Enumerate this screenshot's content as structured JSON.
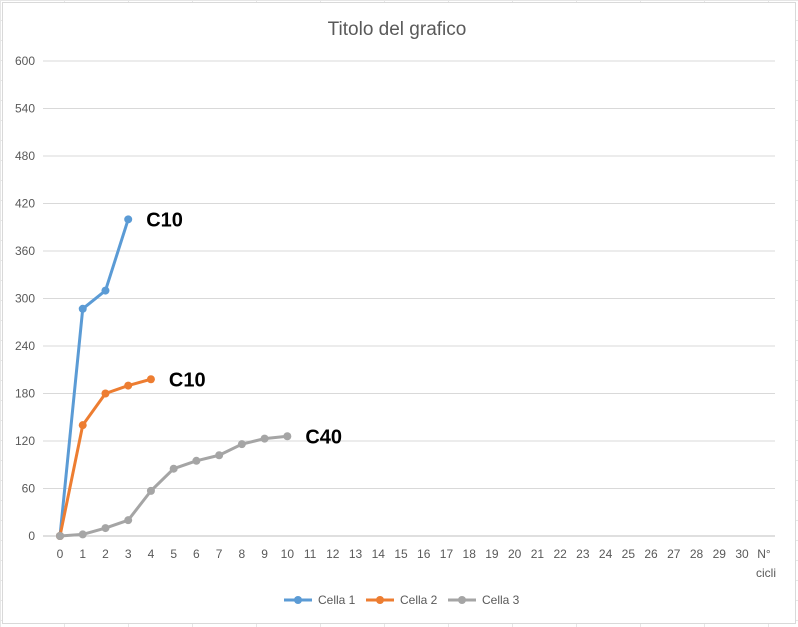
{
  "chart_data": {
    "type": "line",
    "title": "Titolo del grafico",
    "xlabel": "N° cicli",
    "ylabel": "",
    "xlim": [
      0,
      30
    ],
    "ylim": [
      0,
      600
    ],
    "yticks": [
      0,
      60,
      120,
      180,
      240,
      300,
      360,
      420,
      480,
      540,
      600
    ],
    "xticks": [
      0,
      1,
      2,
      3,
      4,
      5,
      6,
      7,
      8,
      9,
      10,
      11,
      12,
      13,
      14,
      15,
      16,
      17,
      18,
      19,
      20,
      21,
      22,
      23,
      24,
      25,
      26,
      27,
      28,
      29,
      30
    ],
    "grid": true,
    "legend_position": "bottom",
    "series": [
      {
        "name": "Cella 1",
        "color": "#5b9bd5",
        "x": [
          0,
          1,
          2,
          3
        ],
        "values": [
          0,
          287,
          310,
          400
        ]
      },
      {
        "name": "Cella 2",
        "color": "#ed7d31",
        "x": [
          0,
          1,
          2,
          3,
          4
        ],
        "values": [
          0,
          140,
          180,
          190,
          198
        ]
      },
      {
        "name": "Cella 3",
        "color": "#a5a5a5",
        "x": [
          0,
          1,
          2,
          3,
          4,
          5,
          6,
          7,
          8,
          9,
          10
        ],
        "values": [
          0,
          2,
          10,
          20,
          57,
          85,
          95,
          102,
          116,
          123,
          126
        ]
      }
    ],
    "annotations": [
      {
        "text": "C10",
        "x": 3,
        "y": 400,
        "series": "Cella 1"
      },
      {
        "text": "C10",
        "x": 4,
        "y": 198,
        "series": "Cella 2"
      },
      {
        "text": "C40",
        "x": 10,
        "y": 126,
        "series": "Cella 3"
      }
    ]
  }
}
